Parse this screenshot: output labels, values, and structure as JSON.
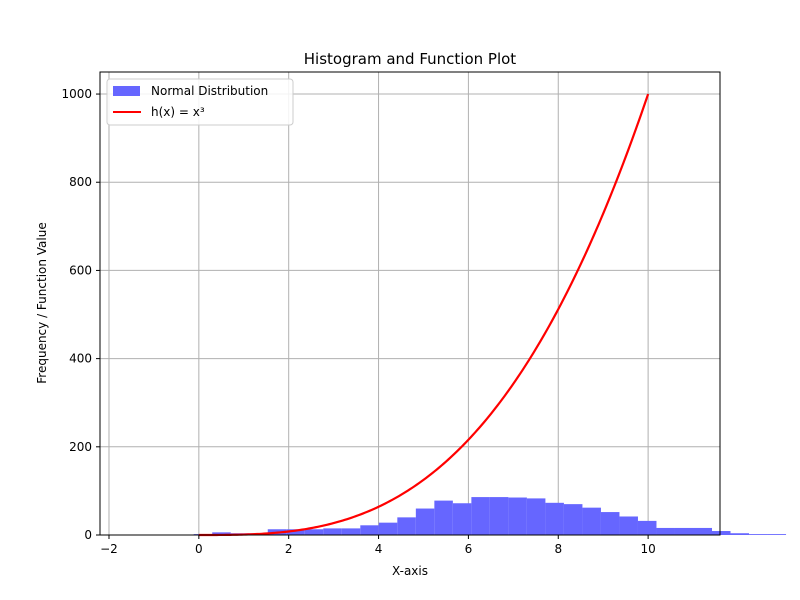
{
  "chart_data": {
    "type": "bar",
    "title": "Histogram and Function Plot",
    "xlabel": "X-axis",
    "ylabel": "Frequency / Function Value",
    "xlim": [
      -2.2,
      11.6
    ],
    "ylim": [
      0,
      1050
    ],
    "xticks": [
      -2,
      0,
      2,
      4,
      6,
      8,
      10
    ],
    "yticks": [
      0,
      200,
      400,
      600,
      800,
      1000
    ],
    "grid": true,
    "legend_position": "upper-left",
    "series": [
      {
        "name": "Normal Distribution",
        "kind": "histogram",
        "color": "#6666ff",
        "bin_start": -1.35,
        "bin_width": 0.412,
        "counts": [
          1,
          0,
          0,
          2,
          6,
          4,
          4,
          13,
          13,
          13,
          15,
          15,
          22,
          28,
          40,
          60,
          78,
          72,
          86,
          86,
          85,
          83,
          73,
          70,
          62,
          52,
          42,
          32,
          16,
          16,
          16,
          9,
          4,
          2,
          2
        ]
      },
      {
        "name": "h(x) = x³",
        "kind": "line",
        "color": "#ff0000",
        "function": "x^3",
        "x_range": [
          0,
          10
        ]
      }
    ]
  }
}
